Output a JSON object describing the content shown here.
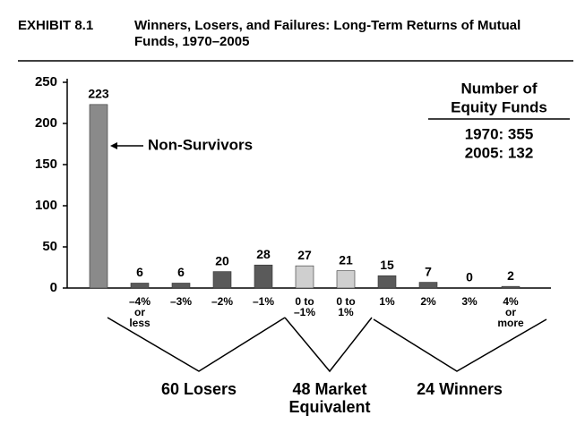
{
  "chart_data": {
    "type": "bar",
    "exhibit": "EXHIBIT 8.1",
    "title": "Winners, Losers, and Failures: Long-Term Returns of Mutual Funds, 1970–2005",
    "categories": [
      null,
      [
        "–4%",
        "or",
        "less"
      ],
      [
        "–3%"
      ],
      [
        "–2%"
      ],
      [
        "–1%"
      ],
      [
        "0 to",
        "–1%"
      ],
      [
        "0 to",
        "1%"
      ],
      [
        "1%"
      ],
      [
        "2%"
      ],
      [
        "3%"
      ],
      [
        "4%",
        "or",
        "more"
      ]
    ],
    "values": [
      223,
      6,
      6,
      20,
      28,
      27,
      21,
      15,
      7,
      0,
      2
    ],
    "colors": [
      "#8a8a8a",
      "#5a5a5a",
      "#5a5a5a",
      "#5a5a5a",
      "#5a5a5a",
      "#cfcfcf",
      "#cfcfcf",
      "#5a5a5a",
      "#5a5a5a",
      "#5a5a5a",
      "#5a5a5a"
    ],
    "ylim": [
      0,
      250
    ],
    "yticks": [
      0,
      50,
      100,
      150,
      200,
      250
    ],
    "annotation": "Non-Survivors",
    "box": {
      "title": [
        "Number of",
        "Equity Funds"
      ],
      "lines": [
        "1970: 355",
        "2005: 132"
      ]
    },
    "groups": [
      [
        "60 Losers"
      ],
      [
        "48 Market",
        "Equivalent"
      ],
      [
        "24 Winners"
      ]
    ]
  }
}
